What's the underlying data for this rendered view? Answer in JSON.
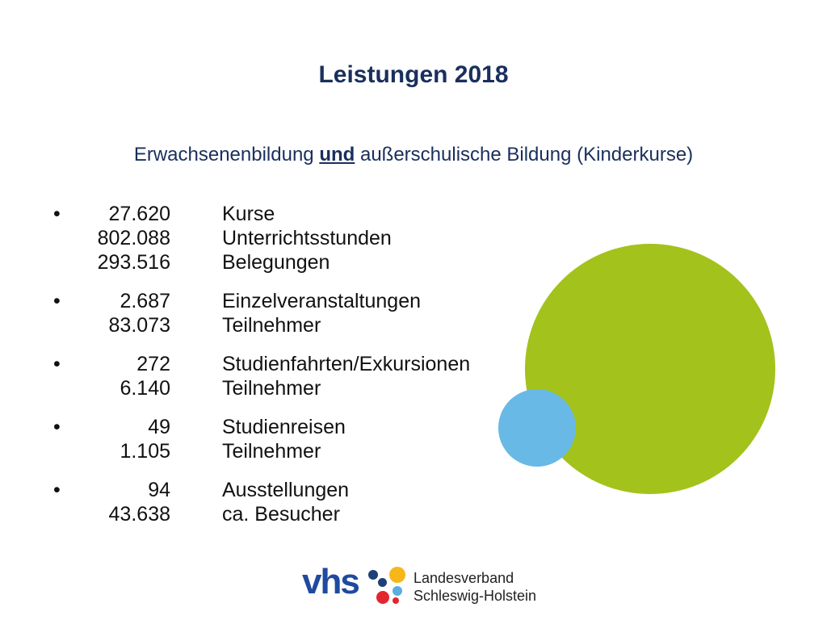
{
  "title": "Leistungen 2018",
  "subtitle": {
    "before": "Erwachsenenbildung ",
    "emph": "und",
    "after": " außerschulische Bildung (Kinderkurse)"
  },
  "bullet_symbol": "•",
  "groups": [
    {
      "rows": [
        {
          "value": "27.620",
          "label": "Kurse"
        },
        {
          "value": "802.088",
          "label": "Unterrichtsstunden"
        },
        {
          "value": "293.516",
          "label": "Belegungen"
        }
      ]
    },
    {
      "rows": [
        {
          "value": "2.687",
          "label": "Einzelveranstaltungen"
        },
        {
          "value": "83.073",
          "label": "Teilnehmer"
        }
      ]
    },
    {
      "rows": [
        {
          "value": "272",
          "label": "Studienfahrten/Exkursionen"
        },
        {
          "value": "6.140",
          "label": "Teilnehmer"
        }
      ]
    },
    {
      "rows": [
        {
          "value": "49",
          "label": "Studienreisen"
        },
        {
          "value": "1.105",
          "label": "Teilnehmer"
        }
      ]
    },
    {
      "rows": [
        {
          "value": "94",
          "label": "Ausstellungen"
        },
        {
          "value": "43.638",
          "label": "ca. Besucher"
        }
      ]
    }
  ],
  "logo": {
    "wordmark": "vhs",
    "org_line1": "Landesverband",
    "org_line2": "Schleswig-Holstein"
  },
  "colors": {
    "title": "#1a2f5c",
    "green_circle": "#a3c21c",
    "blue_circle": "#68b9e6",
    "vhs_blue": "#1f4a9e",
    "dot_yellow": "#f6b71b",
    "dot_red": "#e3262e",
    "dot_lightblue": "#5aaee0",
    "dot_navy": "#1f3f7a"
  }
}
